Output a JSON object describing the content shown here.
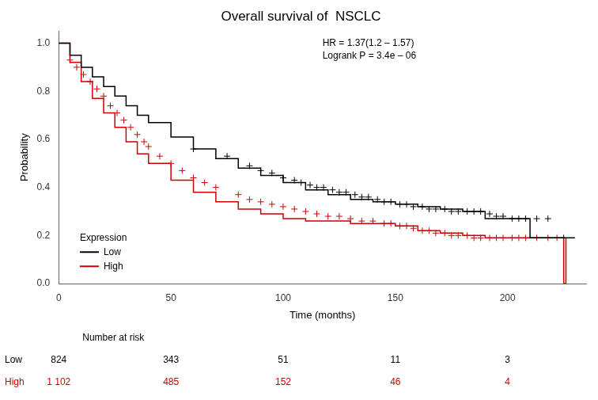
{
  "chart_data": {
    "type": "step",
    "title": "Overall survival of  NSCLC",
    "xlabel": "Time (months)",
    "ylabel": "Probability",
    "xlim": [
      0,
      235
    ],
    "ylim": [
      0,
      1.05
    ],
    "xticks": [
      0,
      50,
      100,
      150,
      200
    ],
    "yticks": [
      {
        "value": 0,
        "label": "0.0"
      },
      0.2,
      0.4,
      0.6,
      0.8,
      {
        "value": 1.0,
        "label": "1.0"
      }
    ],
    "grid": false,
    "legend": "lower left",
    "legend_title": "Expression",
    "annotations": [
      "HR = 1.37(1.2 – 1.57)",
      "Logrank P = 3.4e – 06"
    ],
    "series": [
      {
        "name": "Low",
        "color": "#000000",
        "x": [
          0,
          5,
          10,
          15,
          20,
          25,
          30,
          35,
          40,
          50,
          60,
          70,
          80,
          90,
          100,
          110,
          120,
          130,
          140,
          150,
          160,
          170,
          180,
          190,
          200,
          210,
          220,
          230
        ],
        "values": [
          1.0,
          0.95,
          0.9,
          0.86,
          0.82,
          0.78,
          0.74,
          0.7,
          0.67,
          0.61,
          0.56,
          0.52,
          0.48,
          0.45,
          0.42,
          0.39,
          0.37,
          0.35,
          0.34,
          0.33,
          0.32,
          0.31,
          0.3,
          0.27,
          0.27,
          0.19,
          0.19,
          0.19
        ],
        "censor_x": [
          60,
          75,
          85,
          90,
          95,
          100,
          105,
          108,
          112,
          115,
          118,
          122,
          125,
          128,
          132,
          135,
          138,
          142,
          145,
          148,
          152,
          155,
          158,
          162,
          165,
          168,
          172,
          175,
          178,
          182,
          185,
          188,
          192,
          195,
          198,
          202,
          205,
          208,
          213,
          218,
          225
        ],
        "censor_values": [
          0.56,
          0.53,
          0.49,
          0.47,
          0.46,
          0.44,
          0.43,
          0.42,
          0.41,
          0.4,
          0.4,
          0.39,
          0.38,
          0.38,
          0.37,
          0.36,
          0.36,
          0.35,
          0.34,
          0.34,
          0.33,
          0.33,
          0.32,
          0.32,
          0.31,
          0.31,
          0.31,
          0.3,
          0.3,
          0.3,
          0.3,
          0.3,
          0.29,
          0.28,
          0.28,
          0.27,
          0.27,
          0.27,
          0.27,
          0.27,
          0.19
        ]
      },
      {
        "name": "High",
        "color": "#cc0000",
        "x": [
          0,
          5,
          10,
          15,
          20,
          25,
          30,
          35,
          40,
          50,
          60,
          70,
          80,
          90,
          100,
          110,
          120,
          130,
          140,
          150,
          160,
          170,
          180,
          190,
          200,
          210,
          220,
          225,
          226
        ],
        "values": [
          1.0,
          0.92,
          0.84,
          0.77,
          0.71,
          0.65,
          0.59,
          0.54,
          0.5,
          0.43,
          0.38,
          0.34,
          0.31,
          0.29,
          0.27,
          0.26,
          0.26,
          0.25,
          0.25,
          0.24,
          0.22,
          0.21,
          0.2,
          0.19,
          0.19,
          0.19,
          0.19,
          0.0,
          0.19
        ],
        "censor_x": [
          5,
          8,
          11,
          14,
          17,
          20,
          23,
          26,
          29,
          32,
          35,
          38,
          40,
          45,
          50,
          55,
          60,
          65,
          70,
          80,
          85,
          90,
          95,
          100,
          105,
          110,
          115,
          120,
          125,
          130,
          135,
          140,
          145,
          148,
          152,
          155,
          158,
          162,
          165,
          168,
          172,
          175,
          178,
          182,
          185,
          188,
          192,
          195,
          198,
          202,
          205,
          208,
          213,
          218,
          222
        ],
        "censor_values": [
          0.93,
          0.9,
          0.87,
          0.84,
          0.81,
          0.78,
          0.74,
          0.71,
          0.68,
          0.65,
          0.62,
          0.59,
          0.57,
          0.53,
          0.5,
          0.47,
          0.44,
          0.42,
          0.4,
          0.37,
          0.35,
          0.34,
          0.33,
          0.32,
          0.31,
          0.3,
          0.29,
          0.28,
          0.28,
          0.27,
          0.26,
          0.26,
          0.25,
          0.25,
          0.24,
          0.24,
          0.23,
          0.22,
          0.22,
          0.21,
          0.21,
          0.2,
          0.2,
          0.2,
          0.19,
          0.19,
          0.19,
          0.19,
          0.19,
          0.19,
          0.19,
          0.19,
          0.19,
          0.19,
          0.19
        ]
      }
    ],
    "risk_table": {
      "header": "Number at risk",
      "x": [
        0,
        50,
        100,
        150,
        200
      ],
      "rows": [
        {
          "name": "Low",
          "color": "#000000",
          "values": [
            824,
            343,
            51,
            11,
            3
          ]
        },
        {
          "name": "High",
          "color": "#cc0000",
          "values": [
            1102,
            485,
            152,
            46,
            4
          ],
          "value_labels": [
            "1 102",
            "485",
            "152",
            "46",
            "4"
          ]
        }
      ]
    }
  }
}
